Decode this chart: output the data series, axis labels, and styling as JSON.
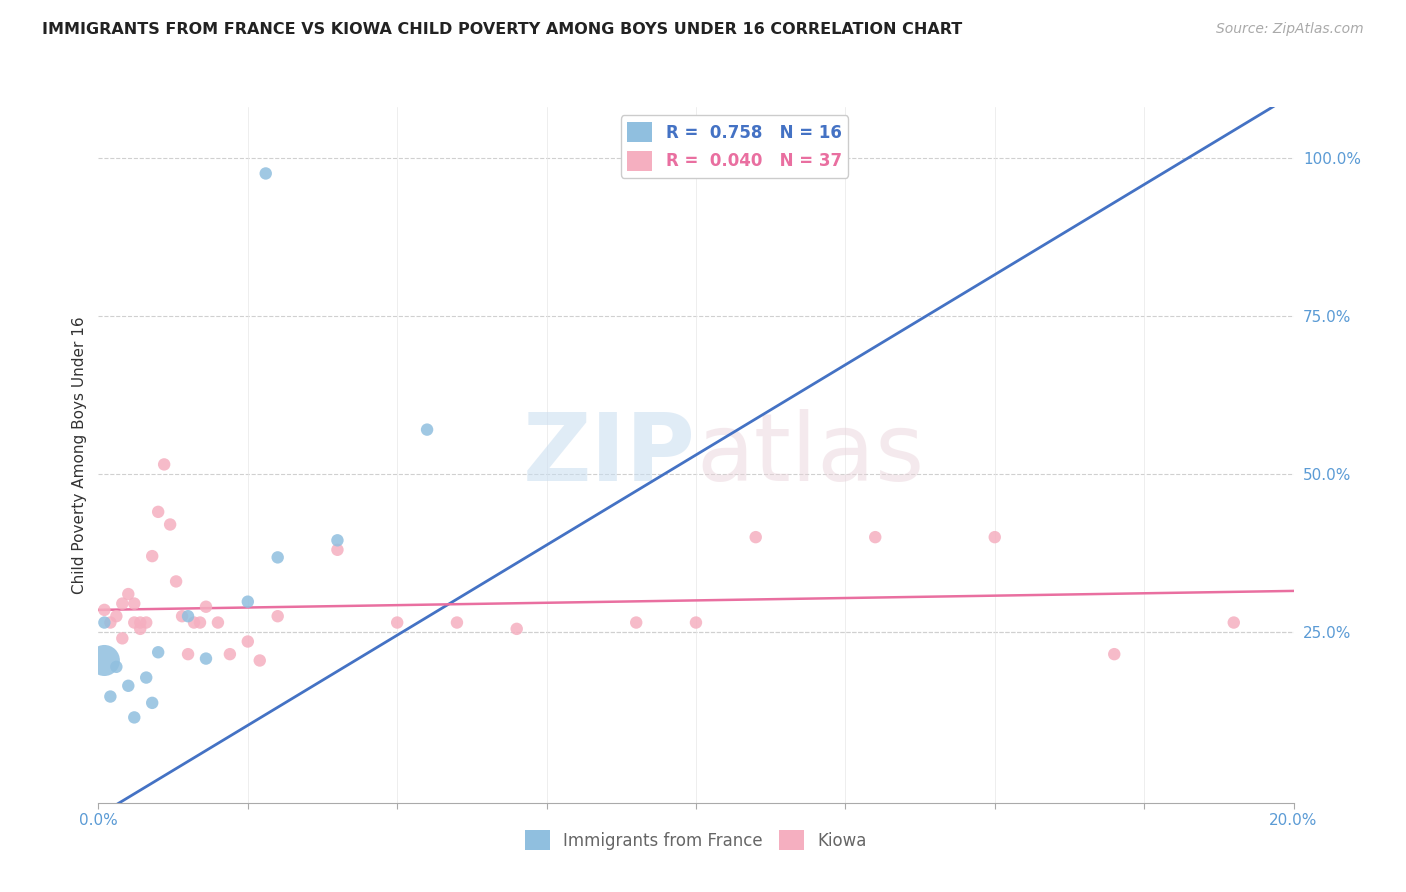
{
  "title": "IMMIGRANTS FROM FRANCE VS KIOWA CHILD POVERTY AMONG BOYS UNDER 16 CORRELATION CHART",
  "source": "Source: ZipAtlas.com",
  "ylabel": "Child Poverty Among Boys Under 16",
  "xlim": [
    0.0,
    0.2
  ],
  "ylim": [
    -0.02,
    1.08
  ],
  "y_ticks_right": [
    0.25,
    0.5,
    0.75,
    1.0
  ],
  "y_tick_labels_right": [
    "25.0%",
    "50.0%",
    "75.0%",
    "100.0%"
  ],
  "legend_blue_r": "R =  0.758",
  "legend_blue_n": "N = 16",
  "legend_pink_r": "R =  0.040",
  "legend_pink_n": "N = 37",
  "blue_color": "#90bfdf",
  "pink_color": "#f5afc0",
  "blue_line_color": "#4472c4",
  "pink_line_color": "#e96fa0",
  "watermark_zip": "ZIP",
  "watermark_atlas": "atlas",
  "blue_scatter_x": [
    0.028,
    0.005,
    0.006,
    0.003,
    0.008,
    0.01,
    0.015,
    0.001,
    0.002,
    0.009,
    0.018,
    0.025,
    0.03,
    0.04,
    0.055,
    0.001
  ],
  "blue_scatter_y": [
    0.975,
    0.165,
    0.115,
    0.195,
    0.178,
    0.218,
    0.275,
    0.265,
    0.148,
    0.138,
    0.208,
    0.298,
    0.368,
    0.395,
    0.57,
    0.205
  ],
  "blue_scatter_size": [
    80,
    80,
    80,
    80,
    80,
    80,
    80,
    80,
    80,
    80,
    80,
    80,
    80,
    80,
    80,
    500
  ],
  "pink_scatter_x": [
    0.001,
    0.002,
    0.003,
    0.004,
    0.004,
    0.005,
    0.006,
    0.006,
    0.007,
    0.007,
    0.008,
    0.009,
    0.01,
    0.011,
    0.012,
    0.013,
    0.014,
    0.015,
    0.016,
    0.017,
    0.018,
    0.02,
    0.022,
    0.025,
    0.027,
    0.03,
    0.04,
    0.05,
    0.06,
    0.07,
    0.09,
    0.1,
    0.11,
    0.13,
    0.15,
    0.17,
    0.19
  ],
  "pink_scatter_y": [
    0.285,
    0.265,
    0.275,
    0.24,
    0.295,
    0.31,
    0.265,
    0.295,
    0.265,
    0.255,
    0.265,
    0.37,
    0.44,
    0.515,
    0.42,
    0.33,
    0.275,
    0.215,
    0.265,
    0.265,
    0.29,
    0.265,
    0.215,
    0.235,
    0.205,
    0.275,
    0.38,
    0.265,
    0.265,
    0.255,
    0.265,
    0.265,
    0.4,
    0.4,
    0.4,
    0.215,
    0.265
  ],
  "pink_scatter_size": [
    80,
    80,
    80,
    80,
    80,
    80,
    80,
    80,
    80,
    80,
    80,
    80,
    80,
    80,
    80,
    80,
    80,
    80,
    80,
    80,
    80,
    80,
    80,
    80,
    80,
    80,
    80,
    80,
    80,
    80,
    80,
    80,
    80,
    80,
    80,
    80,
    80
  ],
  "blue_trendline_x": [
    0.0,
    0.2
  ],
  "blue_trendline_y": [
    -0.04,
    1.1
  ],
  "pink_trendline_x": [
    0.0,
    0.2
  ],
  "pink_trendline_y": [
    0.285,
    0.315
  ]
}
